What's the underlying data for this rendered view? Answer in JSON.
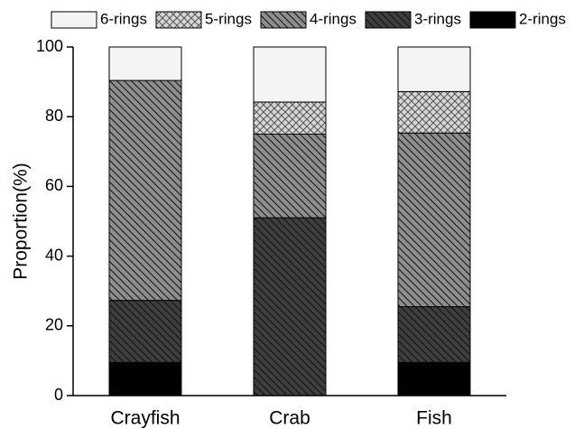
{
  "chart_data": {
    "type": "stacked_bar",
    "y_label": "Proportion(%)",
    "categories": [
      "Crayfish",
      "Crab",
      "Fish"
    ],
    "series": [
      {
        "name": "6-rings",
        "color": "#f4f4f4",
        "hatch": "none",
        "values": [
          9.6,
          15.8,
          12.8
        ]
      },
      {
        "name": "5-rings",
        "color": "#d6d6d6",
        "hatch": "cross",
        "values": [
          0,
          9.2,
          11.9
        ]
      },
      {
        "name": "4-rings",
        "color": "#8e8e8e",
        "hatch": "diagonal",
        "values": [
          63.1,
          24.0,
          49.8
        ]
      },
      {
        "name": "3-rings",
        "color": "#3e3e3e",
        "hatch": "diagonal",
        "values": [
          17.8,
          51.0,
          16.0
        ]
      },
      {
        "name": "2-rings",
        "color": "#000000",
        "hatch": "none",
        "values": [
          9.5,
          0,
          9.5
        ]
      }
    ],
    "ylim": [
      0,
      100
    ],
    "yticks": [
      0,
      20,
      40,
      60,
      80,
      100
    ]
  }
}
